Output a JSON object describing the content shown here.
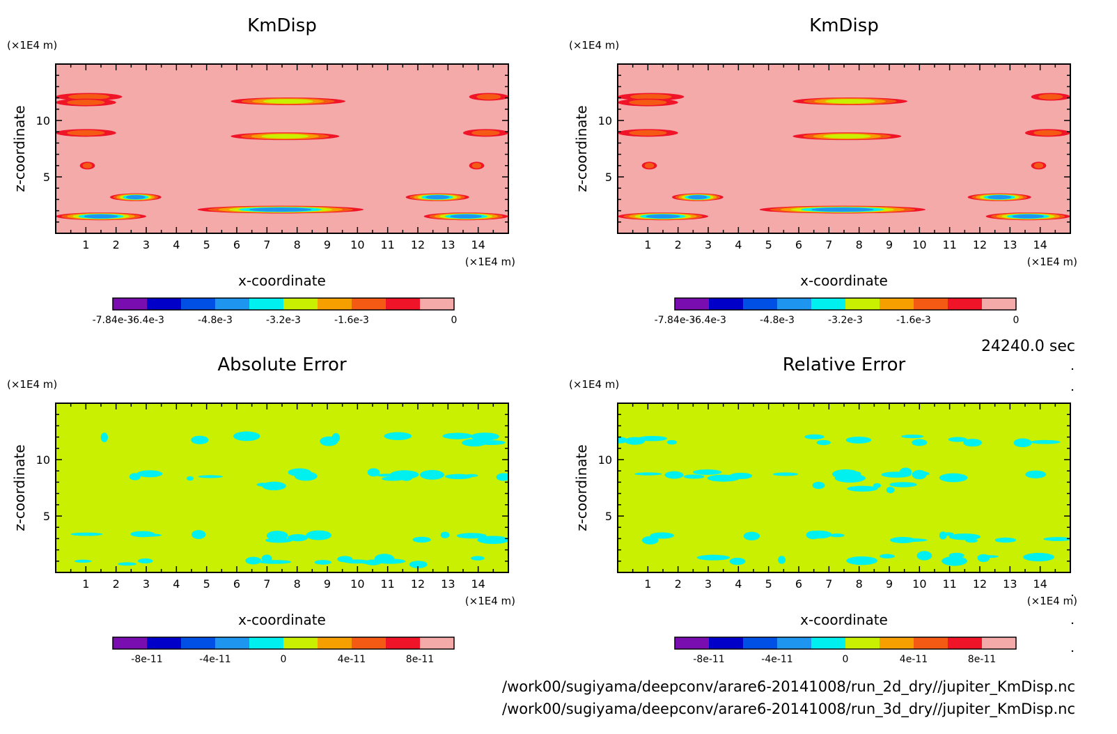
{
  "chart_data": [
    {
      "type": "heatmap",
      "title": "KmDisp",
      "xlabel": "x-coordinate",
      "ylabel": "z-coordinate",
      "x_unit": "(×1E4 m)",
      "y_unit": "(×1E4 m)",
      "xlim": [
        0,
        15
      ],
      "ylim": [
        0,
        15
      ],
      "xticks": [
        "1",
        "2",
        "3",
        "4",
        "5",
        "6",
        "7",
        "8",
        "9",
        "10",
        "11",
        "12",
        "13",
        "14"
      ],
      "yticks": [
        "5",
        "10"
      ],
      "background_level": "0",
      "colorbar": {
        "colors": [
          "#7a0db0",
          "#0000c8",
          "#0050e6",
          "#1e96f0",
          "#00f0f0",
          "#c8f000",
          "#f5a000",
          "#f55a14",
          "#f01428",
          "#f5aaaa"
        ],
        "labels": [
          "-7.84e-3",
          "-6.4e-3",
          "-4.8e-3",
          "-3.2e-3",
          "-1.6e-3",
          "0"
        ]
      },
      "features": [
        {
          "x_range": [
            0,
            2.2
          ],
          "z": 12.1,
          "min_level": "-1.6e-3"
        },
        {
          "x_range": [
            0,
            2.0
          ],
          "z": 11.6,
          "min_level": "-1.6e-3"
        },
        {
          "x_range": [
            0,
            2.0
          ],
          "z": 8.9,
          "min_level": "-1.6e-3"
        },
        {
          "x_range": [
            5.8,
            9.6
          ],
          "z": 11.7,
          "min_level": "-3.2e-3"
        },
        {
          "x_range": [
            5.8,
            9.4
          ],
          "z": 8.6,
          "min_level": "-3.2e-3"
        },
        {
          "x_range": [
            0.8,
            1.3
          ],
          "z": 6.0,
          "min_level": "-1.6e-3"
        },
        {
          "x_range": [
            1.8,
            3.5
          ],
          "z": 3.2,
          "min_level": "-6.4e-3"
        },
        {
          "x_range": [
            0,
            3.0
          ],
          "z": 1.5,
          "min_level": "-6.4e-3"
        },
        {
          "x_range": [
            4.7,
            10.2
          ],
          "z": 2.1,
          "min_level": "-6.4e-3"
        },
        {
          "x_range": [
            11.6,
            13.7
          ],
          "z": 3.2,
          "min_level": "-6.4e-3"
        },
        {
          "x_range": [
            12.2,
            15
          ],
          "z": 1.5,
          "min_level": "-6.4e-3"
        },
        {
          "x_range": [
            13.7,
            15
          ],
          "z": 12.1,
          "min_level": "-1.6e-3"
        },
        {
          "x_range": [
            13.5,
            15
          ],
          "z": 8.9,
          "min_level": "-1.6e-3"
        },
        {
          "x_range": [
            13.7,
            14.2
          ],
          "z": 6.0,
          "min_level": "-1.6e-3"
        }
      ]
    },
    {
      "type": "heatmap",
      "title": "KmDisp",
      "xlabel": "x-coordinate",
      "ylabel": "z-coordinate",
      "x_unit": "(×1E4 m)",
      "y_unit": "(×1E4 m)",
      "xlim": [
        0,
        15
      ],
      "ylim": [
        0,
        15
      ],
      "xticks": [
        "1",
        "2",
        "3",
        "4",
        "5",
        "6",
        "7",
        "8",
        "9",
        "10",
        "11",
        "12",
        "13",
        "14"
      ],
      "yticks": [
        "5",
        "10"
      ],
      "background_level": "0",
      "colorbar": {
        "colors": [
          "#7a0db0",
          "#0000c8",
          "#0050e6",
          "#1e96f0",
          "#00f0f0",
          "#c8f000",
          "#f5a000",
          "#f55a14",
          "#f01428",
          "#f5aaaa"
        ],
        "labels": [
          "-7.84e-3",
          "-6.4e-3",
          "-4.8e-3",
          "-3.2e-3",
          "-1.6e-3",
          "0"
        ]
      },
      "features": [
        {
          "x_range": [
            0,
            2.2
          ],
          "z": 12.1,
          "min_level": "-1.6e-3"
        },
        {
          "x_range": [
            0,
            2.0
          ],
          "z": 11.6,
          "min_level": "-1.6e-3"
        },
        {
          "x_range": [
            0,
            2.0
          ],
          "z": 8.9,
          "min_level": "-1.6e-3"
        },
        {
          "x_range": [
            5.8,
            9.6
          ],
          "z": 11.7,
          "min_level": "-3.2e-3"
        },
        {
          "x_range": [
            5.8,
            9.4
          ],
          "z": 8.6,
          "min_level": "-3.2e-3"
        },
        {
          "x_range": [
            0.8,
            1.3
          ],
          "z": 6.0,
          "min_level": "-1.6e-3"
        },
        {
          "x_range": [
            1.8,
            3.5
          ],
          "z": 3.2,
          "min_level": "-6.4e-3"
        },
        {
          "x_range": [
            0,
            3.0
          ],
          "z": 1.5,
          "min_level": "-6.4e-3"
        },
        {
          "x_range": [
            4.7,
            10.2
          ],
          "z": 2.1,
          "min_level": "-6.4e-3"
        },
        {
          "x_range": [
            11.6,
            13.7
          ],
          "z": 3.2,
          "min_level": "-6.4e-3"
        },
        {
          "x_range": [
            12.2,
            15
          ],
          "z": 1.5,
          "min_level": "-6.4e-3"
        },
        {
          "x_range": [
            13.7,
            15
          ],
          "z": 12.1,
          "min_level": "-1.6e-3"
        },
        {
          "x_range": [
            13.5,
            15
          ],
          "z": 8.9,
          "min_level": "-1.6e-3"
        },
        {
          "x_range": [
            13.7,
            14.2
          ],
          "z": 6.0,
          "min_level": "-1.6e-3"
        }
      ]
    },
    {
      "type": "heatmap",
      "title": "Absolute Error",
      "xlabel": "x-coordinate",
      "ylabel": "z-coordinate",
      "x_unit": "(×1E4 m)",
      "y_unit": "(×1E4 m)",
      "xlim": [
        0,
        15
      ],
      "ylim": [
        0,
        15
      ],
      "xticks": [
        "1",
        "2",
        "3",
        "4",
        "5",
        "6",
        "7",
        "8",
        "9",
        "10",
        "11",
        "12",
        "13",
        "14"
      ],
      "yticks": [
        "5",
        "10"
      ],
      "background_level": "0",
      "colorbar": {
        "colors": [
          "#7a0db0",
          "#0000c8",
          "#0050e6",
          "#1e96f0",
          "#00f0f0",
          "#c8f000",
          "#f5a000",
          "#f55a14",
          "#f01428",
          "#f5aaaa"
        ],
        "labels": [
          "-8e-11",
          "-4e-11",
          "0",
          "4e-11",
          "8e-11"
        ]
      },
      "features": [
        {
          "x_range": [
            0,
            15
          ],
          "z": 11.8,
          "min_level": "0",
          "coverage": "patchy"
        },
        {
          "x_range": [
            0,
            15
          ],
          "z": 8.6,
          "min_level": "0",
          "coverage": "patchy"
        },
        {
          "x_range": [
            6.5,
            8.5
          ],
          "z": 7.6,
          "min_level": "0",
          "coverage": "patchy"
        },
        {
          "x_range": [
            0,
            15
          ],
          "z": 3.1,
          "min_level": "0",
          "coverage": "patchy"
        },
        {
          "x_range": [
            0,
            15
          ],
          "z": 1.0,
          "min_level": "0",
          "coverage": "patchy"
        }
      ]
    },
    {
      "type": "heatmap",
      "title": "Relative Error",
      "xlabel": "x-coordinate",
      "ylabel": "z-coordinate",
      "x_unit": "(×1E4 m)",
      "y_unit": "(×1E4 m)",
      "xlim": [
        0,
        15
      ],
      "ylim": [
        0,
        15
      ],
      "xticks": [
        "1",
        "2",
        "3",
        "4",
        "5",
        "6",
        "7",
        "8",
        "9",
        "10",
        "11",
        "12",
        "13",
        "14"
      ],
      "yticks": [
        "5",
        "10"
      ],
      "background_level": "0",
      "colorbar": {
        "colors": [
          "#7a0db0",
          "#0000c8",
          "#0050e6",
          "#1e96f0",
          "#00f0f0",
          "#c8f000",
          "#f5a000",
          "#f55a14",
          "#f01428",
          "#f5aaaa"
        ],
        "labels": [
          "-8e-11",
          "-4e-11",
          "0",
          "4e-11",
          "8e-11"
        ]
      },
      "features": [
        {
          "x_range": [
            0,
            15
          ],
          "z": 11.8,
          "min_level": "0",
          "coverage": "patchy"
        },
        {
          "x_range": [
            0,
            15
          ],
          "z": 8.6,
          "min_level": "0",
          "coverage": "patchy"
        },
        {
          "x_range": [
            6.5,
            9.5
          ],
          "z": 7.5,
          "min_level": "0",
          "coverage": "patchy"
        },
        {
          "x_range": [
            0,
            15
          ],
          "z": 3.1,
          "min_level": "0",
          "coverage": "patchy"
        },
        {
          "x_range": [
            0,
            15
          ],
          "z": 1.2,
          "min_level": "0",
          "coverage": "patchy"
        }
      ]
    }
  ],
  "time_label": "24240.0 sec",
  "file_paths": [
    "/work00/sugiyama/deepconv/arare6-20141008/run_2d_dry//jupiter_KmDisp.nc",
    "/work00/sugiyama/deepconv/arare6-20141008/run_3d_dry//jupiter_KmDisp.nc"
  ]
}
